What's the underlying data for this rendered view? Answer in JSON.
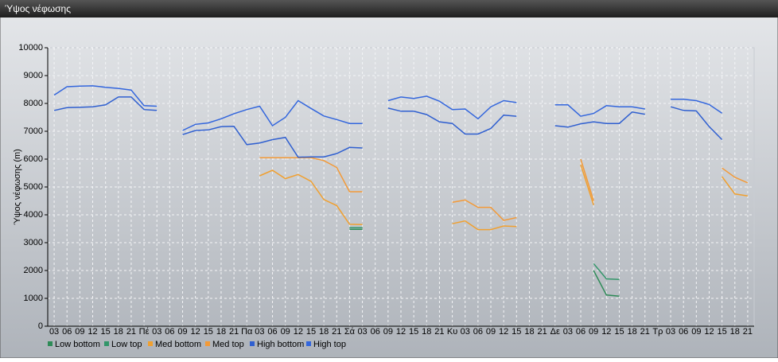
{
  "chart_data": {
    "type": "line",
    "title": "Ύψος νέφωσης",
    "y_label": "Ύψος νέφωσης (m)",
    "categories": [
      "03",
      "06",
      "09",
      "12",
      "15",
      "18",
      "21",
      "Πέ",
      "03",
      "06",
      "09",
      "12",
      "15",
      "18",
      "21",
      "Πα",
      "03",
      "06",
      "09",
      "12",
      "15",
      "18",
      "21",
      "Σά",
      "03",
      "06",
      "09",
      "12",
      "15",
      "18",
      "21",
      "Κυ",
      "03",
      "06",
      "09",
      "12",
      "15",
      "18",
      "21",
      "Δε",
      "03",
      "06",
      "09",
      "12",
      "15",
      "18",
      "21",
      "Τρ",
      "03",
      "06",
      "09",
      "12",
      "15",
      "18",
      "21"
    ],
    "ylim": [
      0,
      10000
    ],
    "yticks": [
      0,
      1000,
      2000,
      3000,
      4000,
      5000,
      6000,
      7000,
      8000,
      9000,
      10000
    ],
    "grid": true,
    "series": [
      {
        "name": "Low bottom",
        "color": "#2e8b57",
        "values": [
          null,
          null,
          null,
          null,
          null,
          null,
          null,
          null,
          null,
          null,
          null,
          null,
          null,
          null,
          null,
          null,
          null,
          null,
          null,
          null,
          null,
          null,
          null,
          3480,
          3480,
          null,
          null,
          null,
          null,
          null,
          null,
          null,
          null,
          null,
          null,
          null,
          null,
          null,
          null,
          null,
          null,
          null,
          2000,
          1120,
          1080,
          null,
          null,
          null,
          null,
          null,
          null,
          null,
          null,
          null,
          null
        ]
      },
      {
        "name": "Low top",
        "color": "#33966a",
        "values": [
          null,
          null,
          null,
          null,
          null,
          null,
          null,
          null,
          null,
          null,
          null,
          null,
          null,
          null,
          null,
          null,
          null,
          null,
          null,
          null,
          null,
          null,
          null,
          3540,
          3540,
          null,
          null,
          null,
          null,
          null,
          null,
          null,
          null,
          null,
          null,
          null,
          null,
          null,
          null,
          null,
          null,
          null,
          2250,
          1700,
          1680,
          null,
          null,
          null,
          null,
          null,
          null,
          null,
          null,
          null,
          null
        ]
      },
      {
        "name": "Med bottom",
        "color": "#f0a030",
        "values": [
          null,
          null,
          null,
          null,
          null,
          null,
          null,
          null,
          null,
          null,
          null,
          null,
          null,
          null,
          null,
          null,
          5400,
          5600,
          5300,
          5450,
          5200,
          4550,
          4330,
          3660,
          3650,
          null,
          null,
          null,
          null,
          null,
          null,
          3680,
          3780,
          3470,
          3470,
          3600,
          3580,
          null,
          null,
          null,
          null,
          5800,
          4350,
          null,
          null,
          null,
          null,
          null,
          null,
          null,
          null,
          null,
          5370,
          4750,
          4680
        ]
      },
      {
        "name": "Med top",
        "color": "#f39a38",
        "values": [
          null,
          null,
          null,
          null,
          null,
          null,
          null,
          null,
          null,
          null,
          null,
          null,
          null,
          null,
          null,
          null,
          6050,
          6050,
          6050,
          6050,
          6050,
          5950,
          5700,
          4830,
          4830,
          null,
          null,
          null,
          null,
          null,
          null,
          4450,
          4530,
          4270,
          4270,
          3800,
          3900,
          null,
          null,
          null,
          null,
          6000,
          4500,
          null,
          null,
          null,
          null,
          null,
          null,
          null,
          null,
          null,
          5680,
          5350,
          5150
        ]
      },
      {
        "name": "High bottom",
        "color": "#2f5fd0",
        "values": [
          7750,
          7850,
          7860,
          7880,
          7950,
          8230,
          8230,
          7780,
          7750,
          null,
          6880,
          7030,
          7050,
          7170,
          7180,
          6520,
          6580,
          6700,
          6780,
          6070,
          6080,
          6080,
          6200,
          6420,
          6400,
          null,
          7830,
          7720,
          7720,
          7600,
          7340,
          7280,
          6900,
          6900,
          7100,
          7580,
          7540,
          null,
          null,
          7200,
          7150,
          7270,
          7340,
          7280,
          7280,
          7690,
          7610,
          null,
          7880,
          7750,
          7730,
          7170,
          6700,
          null,
          null
        ]
      },
      {
        "name": "High top",
        "color": "#3366dd",
        "values": [
          8300,
          8600,
          8620,
          8630,
          8580,
          8540,
          8480,
          7920,
          7900,
          null,
          7030,
          7250,
          7300,
          7450,
          7630,
          7780,
          7900,
          7200,
          7500,
          8100,
          7820,
          7550,
          7420,
          7280,
          7280,
          null,
          8100,
          8230,
          8180,
          8260,
          8080,
          7780,
          7800,
          7450,
          7880,
          8100,
          8030,
          null,
          null,
          7950,
          7950,
          7540,
          7640,
          7920,
          7880,
          7880,
          7800,
          null,
          8150,
          8150,
          8100,
          7960,
          7650,
          null,
          null
        ]
      }
    ]
  }
}
